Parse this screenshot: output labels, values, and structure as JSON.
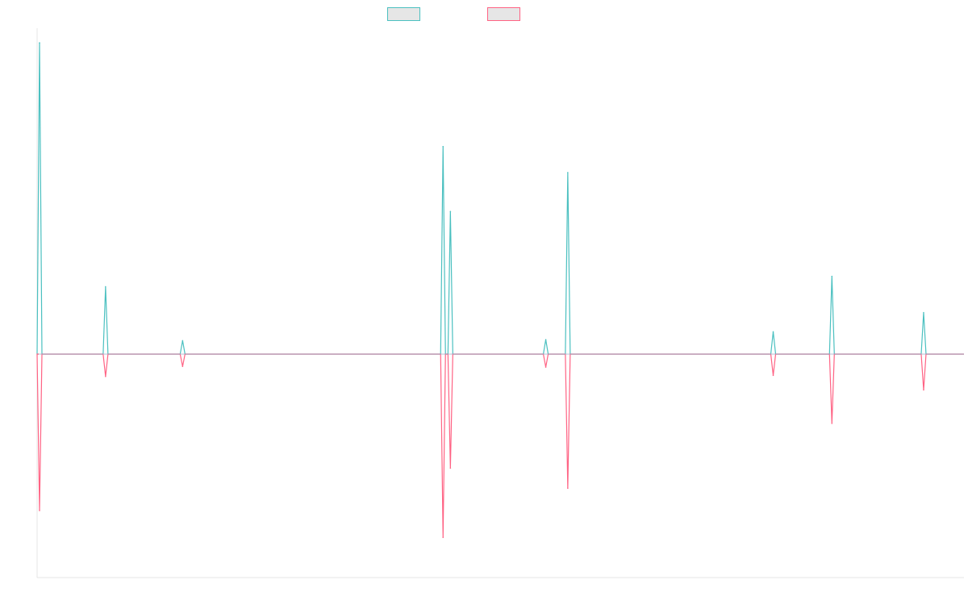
{
  "chart_data": {
    "type": "line",
    "title": "",
    "xlabel": "",
    "ylabel": "",
    "legend_placement": "top-center",
    "grid": false,
    "x": [
      0,
      1.8,
      3.9,
      11,
      11.2,
      13.8,
      14.4,
      20,
      21.6,
      24.1
    ],
    "ylim": [
      -1.0,
      1.25
    ],
    "series": [
      {
        "name": "",
        "color": "#4bc0c0",
        "values": [
          1.2,
          0.26,
          0.052,
          0.8,
          0.55,
          0.056,
          0.7,
          0.086,
          0.3,
          0.16
        ]
      },
      {
        "name": "",
        "color": "#ff6384",
        "values": [
          -0.7,
          -0.1,
          -0.055,
          -0.82,
          -0.51,
          -0.058,
          -0.6,
          -0.095,
          -0.31,
          -0.16
        ]
      }
    ]
  }
}
